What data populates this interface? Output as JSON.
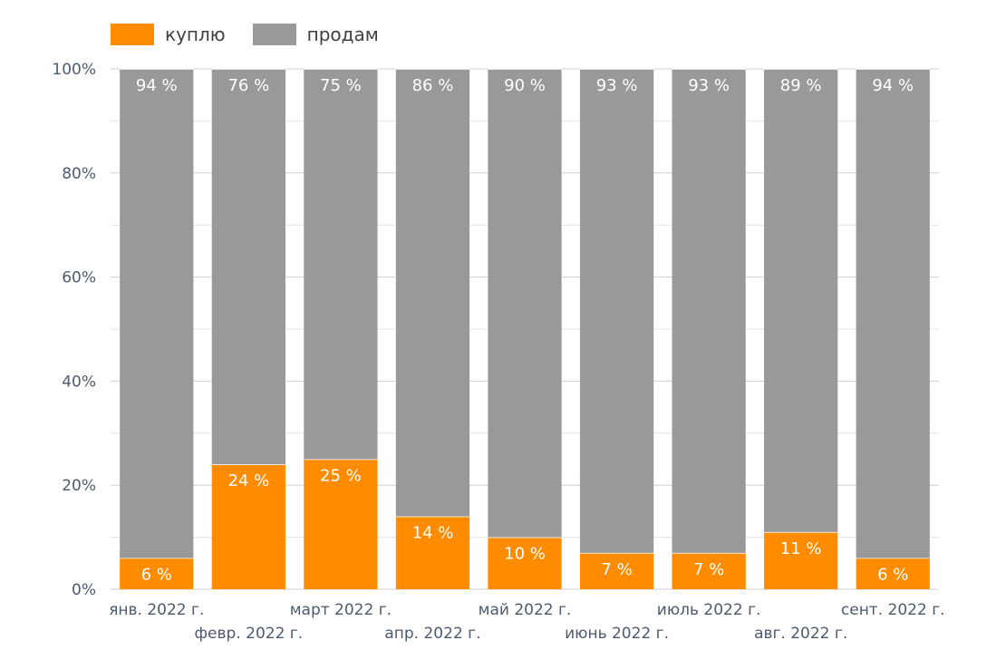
{
  "chart_data": {
    "type": "bar",
    "stacked": true,
    "categories": [
      "янв. 2022 г.",
      "февр. 2022 г.",
      "март 2022 г.",
      "апр. 2022 г.",
      "май 2022 г.",
      "июнь 2022 г.",
      "июль 2022 г.",
      "авг. 2022 г.",
      "сент. 2022 г."
    ],
    "series": [
      {
        "name": "куплю",
        "color": "#ff8c00",
        "values": [
          6,
          24,
          25,
          14,
          10,
          7,
          7,
          11,
          6
        ],
        "labels": [
          "6 %",
          "24 %",
          "25 %",
          "14 %",
          "10 %",
          "7 %",
          "7 %",
          "11 %",
          "6 %"
        ]
      },
      {
        "name": "продам",
        "color": "#999999",
        "values": [
          94,
          76,
          75,
          86,
          90,
          93,
          93,
          89,
          94
        ],
        "labels": [
          "94 %",
          "76 %",
          "75 %",
          "86 %",
          "90 %",
          "93 %",
          "93 %",
          "89 %",
          "94 %"
        ]
      }
    ],
    "ylim": [
      0,
      100
    ],
    "yticks": [
      "0%",
      "20%",
      "40%",
      "60%",
      "80%",
      "100%"
    ],
    "grid": true,
    "legend": "top-left",
    "title": "",
    "xlabel": "",
    "ylabel": ""
  }
}
